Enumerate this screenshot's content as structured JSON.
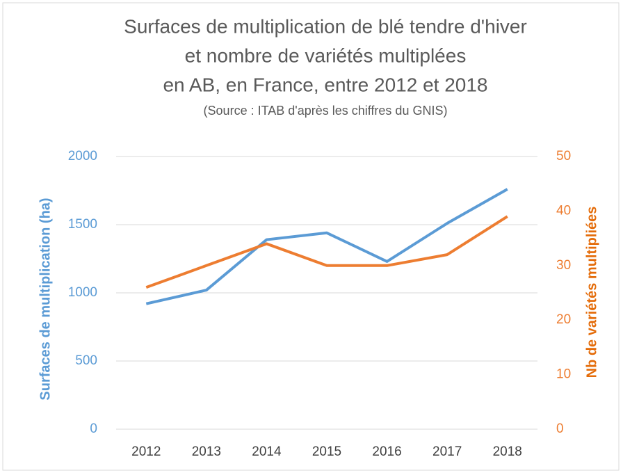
{
  "chart_data": {
    "type": "line",
    "title": [
      "Surfaces de multiplication de blé tendre d'hiver",
      "et nombre de variétés multiplées",
      "en AB, en France, entre 2012 et 2018"
    ],
    "subtitle": "(Source : ITAB d'après les chiffres du GNIS)",
    "categories": [
      "2012",
      "2013",
      "2014",
      "2015",
      "2016",
      "2017",
      "2018"
    ],
    "ylabel": "Surfaces de multiplication (ha)",
    "y2label": "Nb de variétés multipliées",
    "ylim": [
      0,
      2000
    ],
    "yticks": [
      0,
      500,
      1000,
      1500,
      2000
    ],
    "y2lim": [
      0,
      50
    ],
    "y2ticks": [
      0,
      10,
      20,
      30,
      40,
      50
    ],
    "grid": true,
    "series": [
      {
        "color": "#5b9bd5",
        "values": [
          920,
          1020,
          1390,
          1440,
          1230,
          1510,
          1760
        ]
      },
      {
        "color": "#ed7d31",
        "axis": "y2",
        "values": [
          26,
          30,
          34,
          30,
          30,
          32,
          39
        ]
      }
    ]
  }
}
